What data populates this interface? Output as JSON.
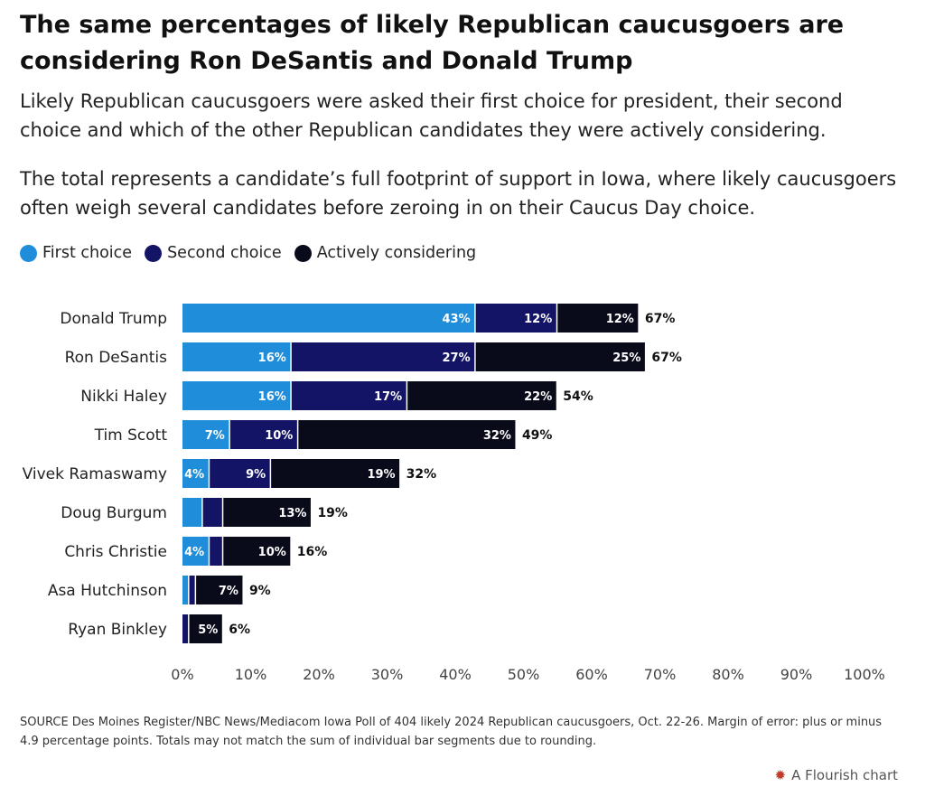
{
  "header": {
    "title": "The same percentages of likely Republican caucusgoers are considering Ron DeSantis and Donald Trump",
    "subtitle_1": "Likely Republican caucusgoers were asked their first choice for president, their second choice and which of the other Republican candidates they were actively considering.",
    "subtitle_2": "The total represents a candidate’s full footprint of support in Iowa, where likely caucusgoers often weigh several candidates before zeroing in on their Caucus Day choice."
  },
  "legend": [
    {
      "label": "First choice",
      "color": "#1f8dd9"
    },
    {
      "label": "Second choice",
      "color": "#131466"
    },
    {
      "label": "Actively considering",
      "color": "#0a0b1a"
    }
  ],
  "chart_data": {
    "type": "bar",
    "orientation": "horizontal",
    "stacked": true,
    "categories": [
      "Donald Trump",
      "Ron DeSantis",
      "Nikki Haley",
      "Tim Scott",
      "Vivek Ramaswamy",
      "Doug Burgum",
      "Chris Christie",
      "Asa Hutchinson",
      "Ryan Binkley"
    ],
    "series": [
      {
        "name": "First choice",
        "color": "#1f8dd9",
        "values": [
          43,
          16,
          16,
          7,
          4,
          3,
          4,
          1,
          0
        ],
        "labels": [
          "43%",
          "16%",
          "16%",
          "7%",
          "4%",
          "",
          "4%",
          "",
          ""
        ]
      },
      {
        "name": "Second choice",
        "color": "#131466",
        "values": [
          12,
          27,
          17,
          10,
          9,
          3,
          2,
          1,
          1
        ],
        "labels": [
          "12%",
          "27%",
          "17%",
          "10%",
          "9%",
          "",
          "",
          "",
          ""
        ]
      },
      {
        "name": "Actively considering",
        "color": "#0a0b1a",
        "values": [
          12,
          25,
          22,
          32,
          19,
          13,
          10,
          7,
          5
        ],
        "labels": [
          "12%",
          "25%",
          "22%",
          "32%",
          "19%",
          "13%",
          "10%",
          "7%",
          "5%"
        ]
      }
    ],
    "totals": [
      "67%",
      "67%",
      "54%",
      "49%",
      "32%",
      "19%",
      "16%",
      "9%",
      "6%"
    ],
    "xlim": [
      0,
      100
    ],
    "xticks": [
      0,
      10,
      20,
      30,
      40,
      50,
      60,
      70,
      80,
      90,
      100
    ],
    "xtick_labels": [
      "0%",
      "10%",
      "20%",
      "30%",
      "40%",
      "50%",
      "60%",
      "70%",
      "80%",
      "90%",
      "100%"
    ],
    "legend_position": "top-left",
    "grid": false
  },
  "footer": {
    "source": "SOURCE Des Moines Register/NBC News/Mediacom Iowa Poll of 404 likely 2024 Republican caucusgoers, Oct. 22-26. Margin of error: plus or minus 4.9 percentage points. Totals may not match the sum of individual bar segments due to rounding.",
    "credit": "A Flourish chart",
    "credit_icon": "flourish-logo-icon"
  }
}
